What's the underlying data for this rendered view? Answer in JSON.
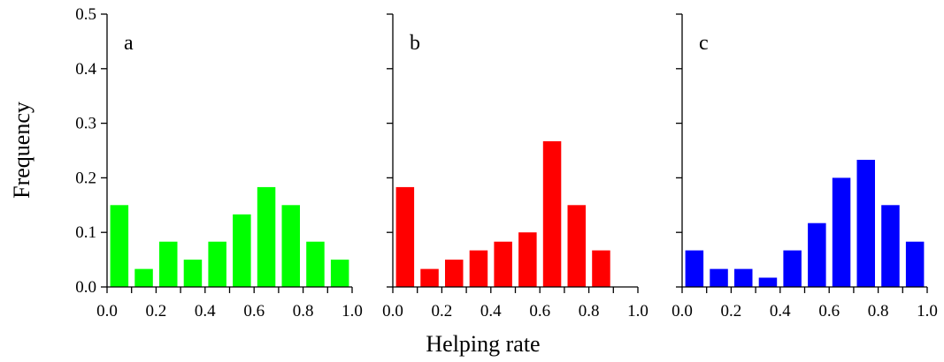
{
  "figure": {
    "ylabel": "Frequency",
    "xlabel": "Helping rate"
  },
  "chart_data": [
    {
      "type": "bar",
      "panel_label": "a",
      "bar_color": "#00ff00",
      "xlim": [
        0.0,
        1.0
      ],
      "ylim": [
        0.0,
        0.5
      ],
      "x": [
        0.05,
        0.15,
        0.25,
        0.35,
        0.45,
        0.55,
        0.65,
        0.75,
        0.85,
        0.95
      ],
      "values": [
        0.15,
        0.033,
        0.083,
        0.05,
        0.083,
        0.133,
        0.183,
        0.15,
        0.083,
        0.05
      ],
      "xticks": [
        "0.0",
        "0.2",
        "0.4",
        "0.6",
        "0.8",
        "1.0"
      ],
      "yticks": [
        "0.0",
        "0.1",
        "0.2",
        "0.3",
        "0.4",
        "0.5"
      ]
    },
    {
      "type": "bar",
      "panel_label": "b",
      "bar_color": "#ff0000",
      "xlim": [
        0.0,
        1.0
      ],
      "ylim": [
        0.0,
        0.5
      ],
      "x": [
        0.05,
        0.15,
        0.25,
        0.35,
        0.45,
        0.55,
        0.65,
        0.75,
        0.85
      ],
      "values": [
        0.183,
        0.033,
        0.05,
        0.067,
        0.083,
        0.1,
        0.267,
        0.15,
        0.067
      ],
      "xticks": [
        "0.0",
        "0.2",
        "0.4",
        "0.6",
        "0.8",
        "1.0"
      ]
    },
    {
      "type": "bar",
      "panel_label": "c",
      "bar_color": "#0000ff",
      "xlim": [
        0.0,
        1.0
      ],
      "ylim": [
        0.0,
        0.5
      ],
      "x": [
        0.05,
        0.15,
        0.25,
        0.35,
        0.45,
        0.55,
        0.65,
        0.75,
        0.85,
        0.95
      ],
      "values": [
        0.067,
        0.033,
        0.033,
        0.017,
        0.067,
        0.117,
        0.2,
        0.233,
        0.15,
        0.083
      ],
      "xticks": [
        "0.0",
        "0.2",
        "0.4",
        "0.6",
        "0.8",
        "1.0"
      ]
    }
  ]
}
